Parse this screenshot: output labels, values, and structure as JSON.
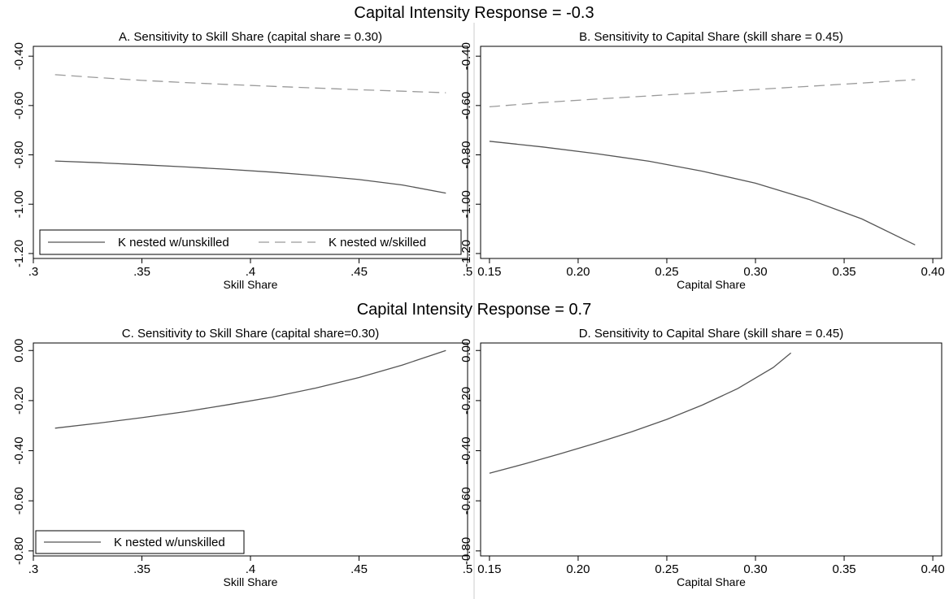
{
  "figure": {
    "top_title": "Capital Intensity Response = -0.3",
    "bottom_title": "Capital Intensity Response = 0.7"
  },
  "colors": {
    "solid_line": "#555555",
    "dashed_line": "#9a9a9a",
    "frame": "#000000",
    "divider": "#cccccc"
  },
  "chart_data": [
    {
      "panel": "A",
      "type": "line",
      "title": "A. Sensitivity to Skill Share (capital share = 0.30)",
      "xlabel": "Skill Share",
      "ylabel": "",
      "xlim": [
        0.3,
        0.5
      ],
      "ylim": [
        -1.22,
        -0.36
      ],
      "xticks": [
        0.3,
        0.35,
        0.4,
        0.45,
        0.5
      ],
      "xtick_labels": [
        ".3",
        ".35",
        ".4",
        ".45",
        ".5"
      ],
      "yticks": [
        -1.2,
        -1.0,
        -0.8,
        -0.6,
        -0.4
      ],
      "ytick_labels": [
        "-1.20",
        "-1.00",
        "-0.80",
        "-0.60",
        "-0.40"
      ],
      "grid": false,
      "legend": {
        "position": "bottom",
        "columns": 2,
        "entries": [
          "K nested w/unskilled",
          "K nested w/skilled"
        ]
      },
      "series": [
        {
          "name": "K nested w/unskilled",
          "style": "solid",
          "x": [
            0.31,
            0.33,
            0.35,
            0.37,
            0.39,
            0.41,
            0.43,
            0.45,
            0.47,
            0.49
          ],
          "y": [
            -0.825,
            -0.832,
            -0.84,
            -0.849,
            -0.859,
            -0.87,
            -0.884,
            -0.9,
            -0.922,
            -0.955
          ]
        },
        {
          "name": "K nested w/skilled",
          "style": "dashed",
          "x": [
            0.31,
            0.33,
            0.35,
            0.37,
            0.39,
            0.41,
            0.43,
            0.45,
            0.47,
            0.49
          ],
          "y": [
            -0.475,
            -0.487,
            -0.498,
            -0.507,
            -0.515,
            -0.522,
            -0.529,
            -0.536,
            -0.542,
            -0.548
          ]
        }
      ]
    },
    {
      "panel": "B",
      "type": "line",
      "title": "B. Sensitivity to Capital Share (skill share = 0.45)",
      "xlabel": "Capital Share",
      "ylabel": "",
      "xlim": [
        0.145,
        0.405
      ],
      "ylim": [
        -1.22,
        -0.36
      ],
      "xticks": [
        0.15,
        0.2,
        0.25,
        0.3,
        0.35,
        0.4
      ],
      "xtick_labels": [
        "0.15",
        "0.20",
        "0.25",
        "0.30",
        "0.35",
        "0.40"
      ],
      "yticks": [
        -1.2,
        -1.0,
        -0.8,
        -0.6,
        -0.4
      ],
      "ytick_labels": [
        "-1.20",
        "-1.00",
        "-0.80",
        "-0.60",
        "-0.40"
      ],
      "grid": false,
      "legend": null,
      "series": [
        {
          "name": "K nested w/unskilled",
          "style": "solid",
          "x": [
            0.15,
            0.18,
            0.21,
            0.24,
            0.27,
            0.3,
            0.33,
            0.36,
            0.39
          ],
          "y": [
            -0.745,
            -0.768,
            -0.795,
            -0.826,
            -0.866,
            -0.915,
            -0.98,
            -1.06,
            -1.165
          ]
        },
        {
          "name": "K nested w/skilled",
          "style": "dashed",
          "x": [
            0.15,
            0.18,
            0.21,
            0.24,
            0.27,
            0.3,
            0.33,
            0.36,
            0.39
          ],
          "y": [
            -0.605,
            -0.588,
            -0.574,
            -0.561,
            -0.548,
            -0.535,
            -0.522,
            -0.509,
            -0.495
          ]
        }
      ]
    },
    {
      "panel": "C",
      "type": "line",
      "title": "C. Sensitivity to Skill Share (capital share=0.30)",
      "xlabel": "Skill Share",
      "ylabel": "",
      "xlim": [
        0.3,
        0.5
      ],
      "ylim": [
        -0.82,
        0.03
      ],
      "xticks": [
        0.3,
        0.35,
        0.4,
        0.45,
        0.5
      ],
      "xtick_labels": [
        ".3",
        ".35",
        ".4",
        ".45",
        ".5"
      ],
      "yticks": [
        -0.8,
        -0.6,
        -0.4,
        -0.2,
        0.0
      ],
      "ytick_labels": [
        "-0.80",
        "-0.60",
        "-0.40",
        "-0.20",
        "0.00"
      ],
      "grid": false,
      "legend": {
        "position": "bottom-left",
        "columns": 1,
        "entries": [
          "K nested w/unskilled"
        ]
      },
      "series": [
        {
          "name": "K nested w/unskilled",
          "style": "solid",
          "x": [
            0.31,
            0.33,
            0.35,
            0.37,
            0.39,
            0.41,
            0.43,
            0.45,
            0.47,
            0.49
          ],
          "y": [
            -0.31,
            -0.29,
            -0.268,
            -0.244,
            -0.216,
            -0.186,
            -0.15,
            -0.108,
            -0.058,
            0.0
          ]
        }
      ]
    },
    {
      "panel": "D",
      "type": "line",
      "title": "D. Sensitivity to Capital Share (skill share = 0.45)",
      "xlabel": "Capital Share",
      "ylabel": "",
      "xlim": [
        0.145,
        0.405
      ],
      "ylim": [
        -0.82,
        0.03
      ],
      "xticks": [
        0.15,
        0.2,
        0.25,
        0.3,
        0.35,
        0.4
      ],
      "xtick_labels": [
        "0.15",
        "0.20",
        "0.25",
        "0.30",
        "0.35",
        "0.40"
      ],
      "yticks": [
        -0.8,
        -0.6,
        -0.4,
        -0.2,
        0.0
      ],
      "ytick_labels": [
        "-0.80",
        "-0.60",
        "-0.40",
        "-0.20",
        "0.00"
      ],
      "grid": false,
      "legend": null,
      "series": [
        {
          "name": "K nested w/unskilled",
          "style": "solid",
          "x": [
            0.15,
            0.17,
            0.19,
            0.21,
            0.23,
            0.25,
            0.27,
            0.29,
            0.31,
            0.32
          ],
          "y": [
            -0.49,
            -0.452,
            -0.412,
            -0.37,
            -0.325,
            -0.275,
            -0.218,
            -0.152,
            -0.068,
            -0.01
          ]
        }
      ]
    }
  ]
}
